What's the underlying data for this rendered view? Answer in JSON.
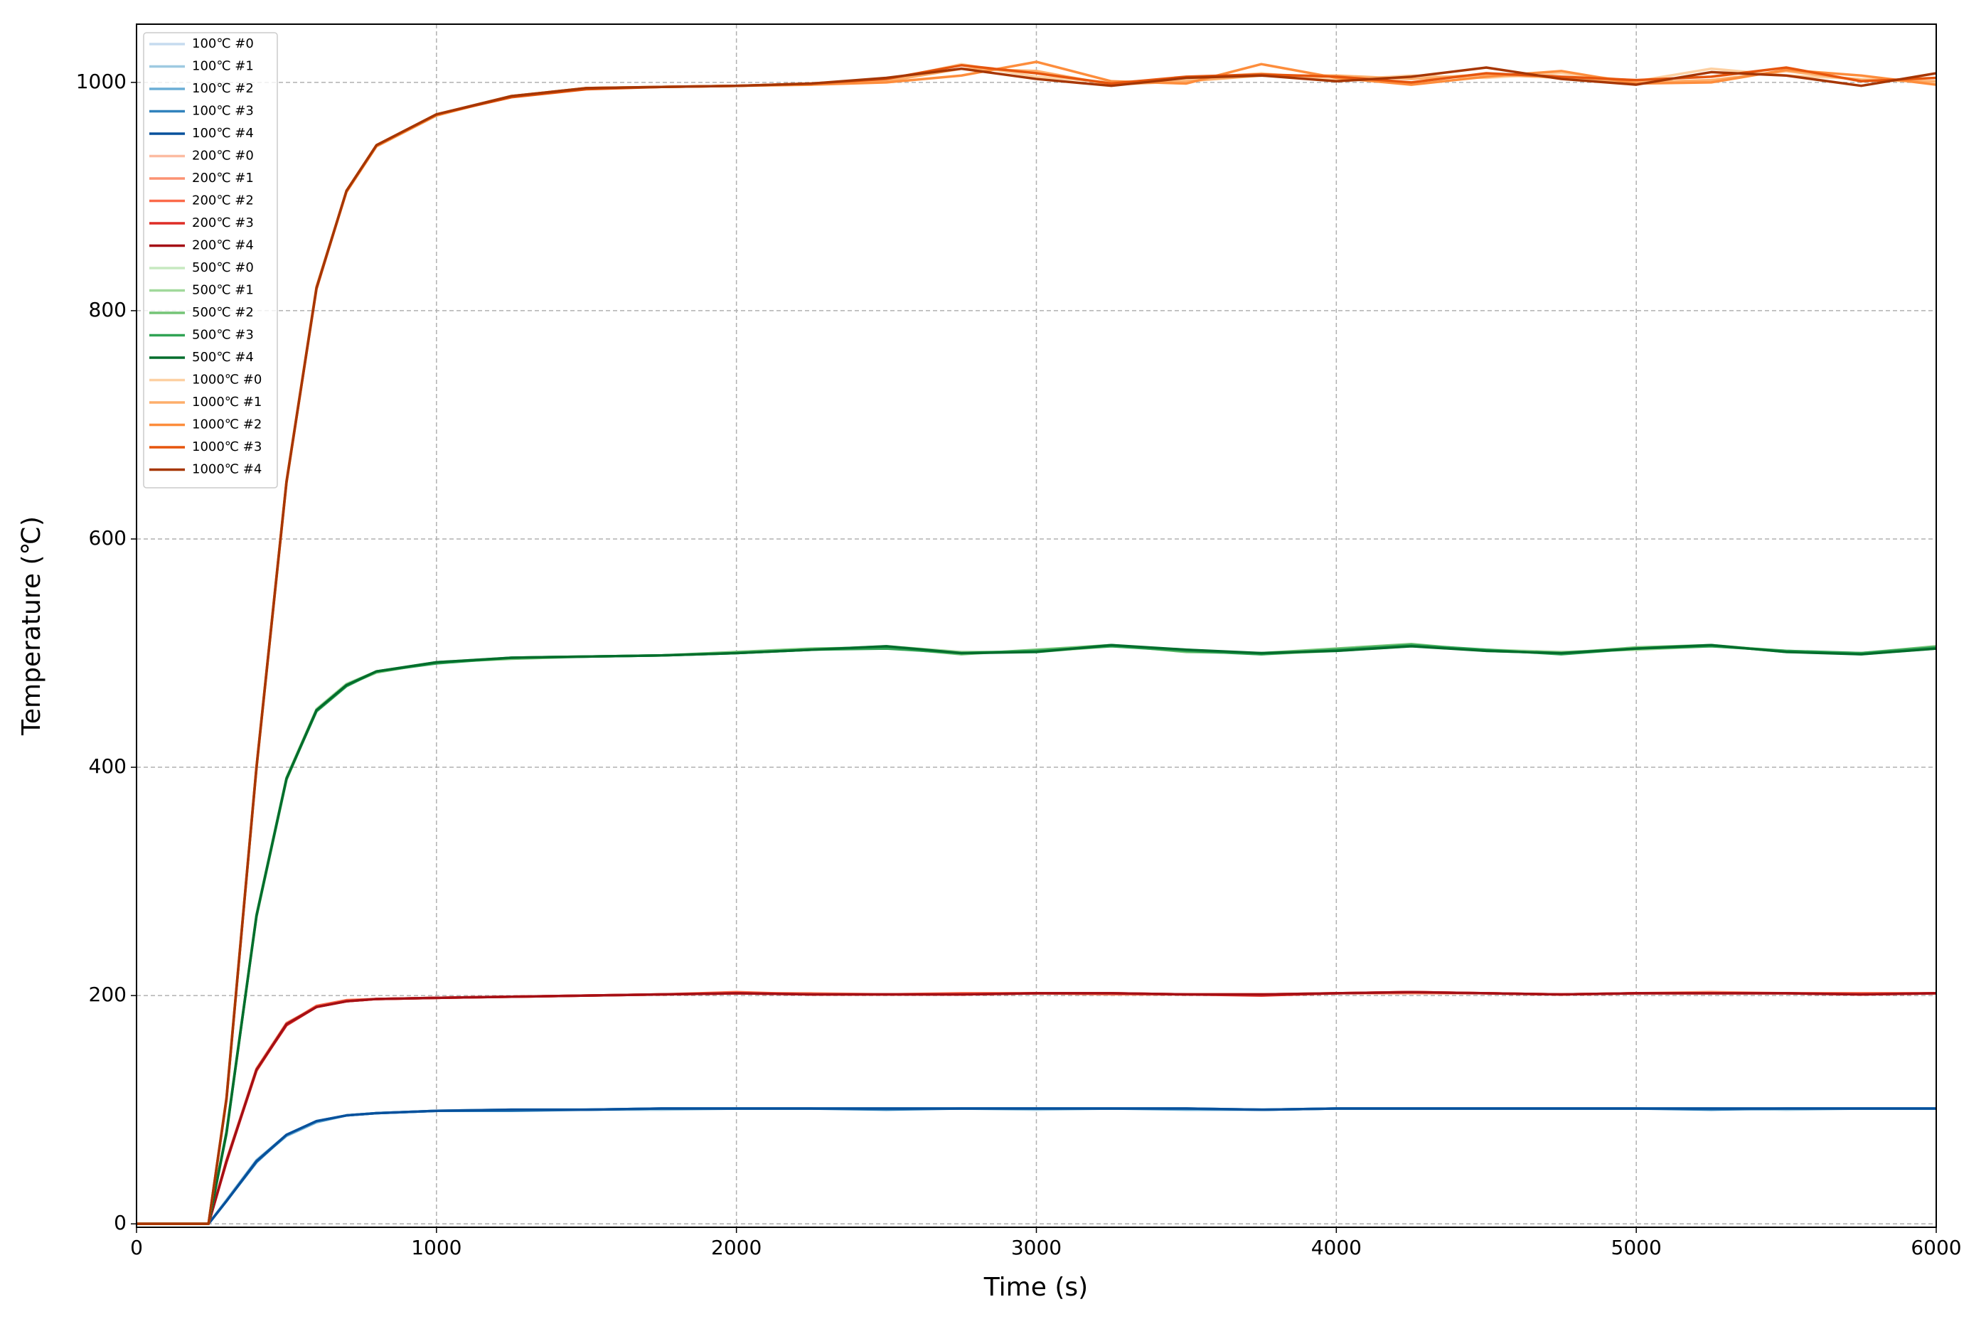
{
  "chart_data": {
    "type": "line",
    "xlabel": "Time (s)",
    "ylabel": "Temperature (℃)",
    "xlim": [
      0,
      6000
    ],
    "ylim": [
      -3,
      1051
    ],
    "xticks": [
      0,
      1000,
      2000,
      3000,
      4000,
      5000,
      6000
    ],
    "yticks": [
      0,
      200,
      400,
      600,
      800,
      1000
    ],
    "grid": true,
    "legend": "upper left",
    "x": [
      0,
      240,
      300,
      400,
      500,
      600,
      700,
      800,
      1000,
      1250,
      1500,
      1750,
      2000,
      2250,
      2500,
      2750,
      3000,
      3250,
      3500,
      3750,
      4000,
      4250,
      4500,
      4750,
      5000,
      5250,
      5500,
      5750,
      6000
    ],
    "series": [
      {
        "name": "100℃ #0",
        "color": "#c6dbef",
        "values": [
          0,
          0,
          20,
          55,
          78,
          90,
          95,
          97,
          99,
          100,
          100,
          101,
          101,
          101,
          101,
          101,
          101,
          101,
          101,
          100,
          101,
          101,
          101,
          101,
          101,
          101,
          101,
          101,
          101
        ]
      },
      {
        "name": "100℃ #1",
        "color": "#9ecae1",
        "values": [
          0,
          0,
          21,
          56,
          78,
          90,
          95,
          97,
          99,
          100,
          100,
          100,
          101,
          101,
          101,
          101,
          100,
          101,
          101,
          100,
          101,
          101,
          101,
          101,
          101,
          101,
          100,
          101,
          101
        ]
      },
      {
        "name": "100℃ #2",
        "color": "#6baed6",
        "values": [
          0,
          0,
          20,
          55,
          77,
          89,
          95,
          97,
          99,
          100,
          100,
          101,
          101,
          101,
          101,
          101,
          101,
          101,
          100,
          100,
          101,
          101,
          101,
          101,
          101,
          101,
          101,
          101,
          101
        ]
      },
      {
        "name": "100℃ #3",
        "color": "#3182bd",
        "values": [
          0,
          0,
          20,
          54,
          78,
          90,
          95,
          97,
          99,
          99,
          100,
          101,
          101,
          101,
          100,
          101,
          101,
          101,
          101,
          100,
          101,
          101,
          101,
          101,
          101,
          100,
          101,
          101,
          101
        ]
      },
      {
        "name": "100℃ #4",
        "color": "#08519c",
        "values": [
          0,
          0,
          20,
          55,
          78,
          90,
          95,
          97,
          99,
          100,
          100,
          101,
          101,
          101,
          101,
          101,
          101,
          101,
          101,
          100,
          101,
          101,
          101,
          101,
          101,
          101,
          101,
          101,
          101
        ]
      },
      {
        "name": "200℃ #0",
        "color": "#fcbba1",
        "values": [
          0,
          0,
          55,
          135,
          175,
          190,
          195,
          197,
          198,
          199,
          200,
          201,
          202,
          201,
          201,
          201,
          202,
          202,
          201,
          201,
          202,
          203,
          202,
          201,
          202,
          202,
          202,
          201,
          202
        ]
      },
      {
        "name": "200℃ #1",
        "color": "#fc9272",
        "values": [
          0,
          0,
          56,
          136,
          176,
          190,
          195,
          197,
          198,
          199,
          200,
          201,
          202,
          202,
          201,
          201,
          202,
          201,
          201,
          201,
          202,
          202,
          202,
          201,
          202,
          203,
          202,
          201,
          202
        ]
      },
      {
        "name": "200℃ #2",
        "color": "#fb6a4a",
        "values": [
          0,
          0,
          55,
          134,
          175,
          191,
          196,
          197,
          198,
          199,
          200,
          201,
          203,
          201,
          201,
          202,
          202,
          202,
          201,
          201,
          202,
          203,
          202,
          201,
          202,
          202,
          202,
          202,
          202
        ]
      },
      {
        "name": "200℃ #3",
        "color": "#de2d26",
        "values": [
          0,
          0,
          54,
          135,
          174,
          190,
          195,
          197,
          198,
          199,
          200,
          201,
          202,
          201,
          201,
          201,
          202,
          202,
          201,
          200,
          202,
          203,
          202,
          201,
          202,
          202,
          202,
          201,
          202
        ]
      },
      {
        "name": "200℃ #4",
        "color": "#a50f15",
        "values": [
          0,
          0,
          55,
          135,
          175,
          190,
          195,
          197,
          198,
          199,
          200,
          201,
          202,
          201,
          201,
          201,
          202,
          202,
          201,
          201,
          202,
          203,
          202,
          201,
          202,
          202,
          202,
          201,
          202
        ]
      },
      {
        "name": "500℃ #0",
        "color": "#c7e9c0",
        "values": [
          0,
          0,
          80,
          270,
          390,
          450,
          472,
          484,
          492,
          496,
          497,
          498,
          500,
          503,
          505,
          500,
          502,
          507,
          502,
          500,
          503,
          507,
          502,
          500,
          504,
          507,
          502,
          500,
          505
        ]
      },
      {
        "name": "500℃ #1",
        "color": "#a1d99b",
        "values": [
          0,
          0,
          81,
          271,
          391,
          451,
          473,
          484,
          492,
          496,
          497,
          498,
          500,
          503,
          506,
          501,
          501,
          506,
          503,
          499,
          502,
          506,
          503,
          501,
          503,
          506,
          502,
          499,
          504
        ]
      },
      {
        "name": "500℃ #2",
        "color": "#74c476",
        "values": [
          0,
          0,
          80,
          269,
          389,
          450,
          472,
          483,
          492,
          495,
          497,
          498,
          501,
          504,
          505,
          499,
          503,
          507,
          501,
          500,
          504,
          508,
          502,
          500,
          505,
          507,
          501,
          500,
          506
        ]
      },
      {
        "name": "500℃ #3",
        "color": "#31a354",
        "values": [
          0,
          0,
          79,
          270,
          390,
          449,
          471,
          484,
          491,
          496,
          497,
          498,
          500,
          503,
          504,
          500,
          502,
          506,
          502,
          499,
          503,
          507,
          503,
          499,
          504,
          506,
          502,
          500,
          505
        ]
      },
      {
        "name": "500℃ #4",
        "color": "#006d2c",
        "values": [
          0,
          0,
          80,
          270,
          390,
          450,
          472,
          484,
          492,
          496,
          497,
          498,
          500,
          503,
          506,
          500,
          501,
          507,
          503,
          500,
          502,
          506,
          502,
          500,
          504,
          507,
          501,
          499,
          504
        ]
      },
      {
        "name": "1000℃ #0",
        "color": "#fdd0a2",
        "values": [
          0,
          0,
          110,
          400,
          650,
          820,
          905,
          945,
          972,
          988,
          995,
          996,
          997,
          999,
          1002,
          1016,
          1005,
          1000,
          1003,
          1008,
          1002,
          1006,
          1004,
          1008,
          1001,
          1012,
          1006,
          1003,
          1000
        ]
      },
      {
        "name": "1000℃ #1",
        "color": "#fdae6b",
        "values": [
          0,
          0,
          111,
          401,
          651,
          821,
          905,
          945,
          972,
          988,
          995,
          996,
          997,
          999,
          1001,
          1012,
          1010,
          998,
          1001,
          1006,
          1006,
          1003,
          1007,
          1004,
          1000,
          1002,
          1010,
          1002,
          1001
        ]
      },
      {
        "name": "1000℃ #2",
        "color": "#fd8d3c",
        "values": [
          0,
          0,
          110,
          399,
          649,
          820,
          904,
          944,
          971,
          988,
          995,
          996,
          997,
          998,
          1000,
          1006,
          1018,
          1001,
          999,
          1016,
          1004,
          998,
          1005,
          1010,
          999,
          1000,
          1011,
          1006,
          998
        ]
      },
      {
        "name": "1000℃ #3",
        "color": "#e6550d",
        "values": [
          0,
          0,
          109,
          400,
          650,
          819,
          905,
          945,
          972,
          987,
          994,
          996,
          997,
          999,
          1003,
          1015,
          1008,
          999,
          1005,
          1007,
          1005,
          1000,
          1008,
          1005,
          1002,
          1005,
          1013,
          1001,
          1004
        ]
      },
      {
        "name": "1000℃ #4",
        "color": "#a63603",
        "values": [
          0,
          0,
          110,
          400,
          650,
          820,
          905,
          945,
          972,
          988,
          995,
          996,
          997,
          999,
          1004,
          1012,
          1003,
          997,
          1004,
          1006,
          1001,
          1005,
          1013,
          1003,
          998,
          1009,
          1006,
          997,
          1008
        ]
      }
    ]
  }
}
